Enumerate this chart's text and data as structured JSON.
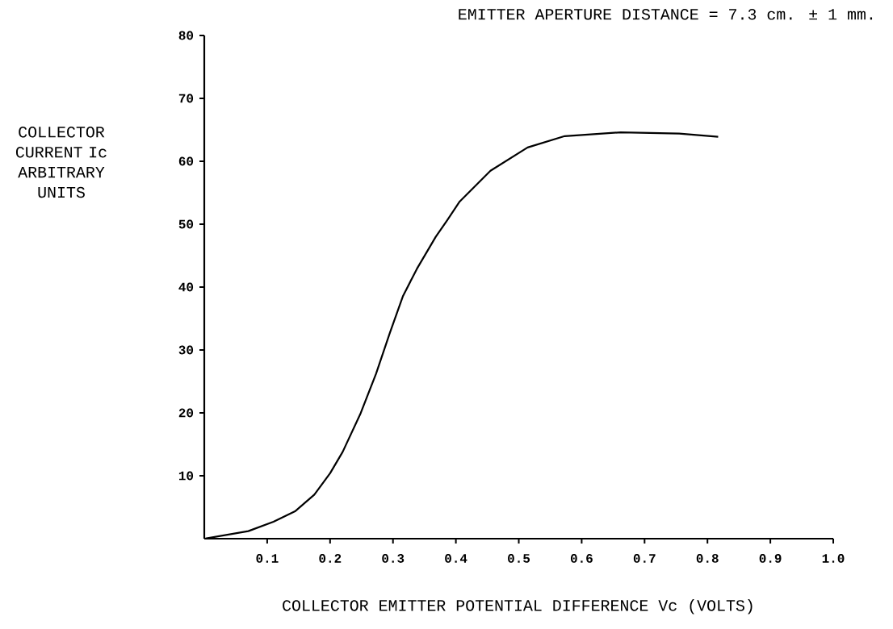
{
  "chart_data": {
    "type": "line",
    "title": "EMITTER APERTURE DISTANCE = 7.3 cm. ± 1 mm.",
    "xlabel": "COLLECTOR EMITTER POTENTIAL DIFFERENCE Vc (VOLTS)",
    "ylabel": "COLLECTOR CURRENT Ic ARBITRARY UNITS",
    "x": [
      0,
      0.07,
      0.11,
      0.145,
      0.175,
      0.2,
      0.22,
      0.248,
      0.273,
      0.295,
      0.316,
      0.338,
      0.368,
      0.386,
      0.406,
      0.455,
      0.514,
      0.573,
      0.662,
      0.755,
      0.817
    ],
    "series": [
      {
        "color": "#000000",
        "values": [
          0,
          1.2,
          2.7,
          4.4,
          7.0,
          10.4,
          13.8,
          19.8,
          26.2,
          32.7,
          38.6,
          42.9,
          48.0,
          50.6,
          53.6,
          58.5,
          62.2,
          64.0,
          64.6,
          64.4,
          63.9
        ]
      }
    ],
    "xlim": [
      0,
      1.0
    ],
    "ylim": [
      0,
      80
    ],
    "xticks": [
      0.1,
      0.2,
      0.3,
      0.4,
      0.5,
      0.6,
      0.7,
      0.8,
      0.9,
      {
        "value": 1,
        "label": "1.0"
      }
    ],
    "yticks": [
      10,
      20,
      30,
      40,
      50,
      60,
      70,
      80
    ],
    "marker": "none",
    "line_style": "solid"
  }
}
